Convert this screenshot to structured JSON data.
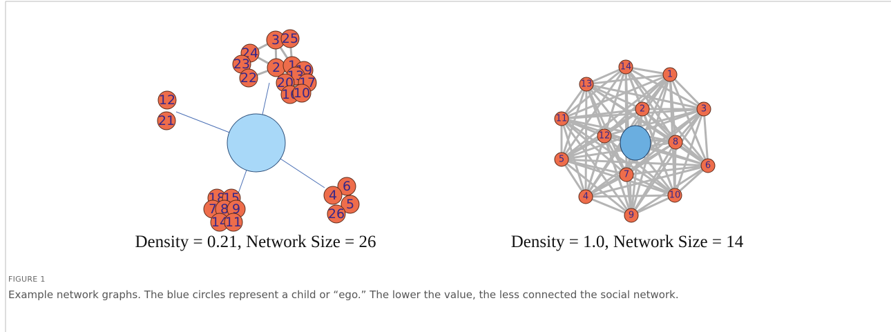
{
  "panels": [
    {
      "caption": "Density = 0.21, Network Size = 26",
      "nodes": [
        "3",
        "25",
        "24",
        "23",
        "22",
        "2",
        "1",
        "19",
        "13",
        "20",
        "17",
        "16",
        "10",
        "12",
        "21",
        "18",
        "15",
        "7",
        "8",
        "9",
        "14",
        "11",
        "6",
        "4",
        "5",
        "26"
      ]
    },
    {
      "caption": "Density = 1.0, Network Size = 14",
      "nodes": [
        "14",
        "1",
        "13",
        "3",
        "2",
        "11",
        "12",
        "8",
        "5",
        "6",
        "7",
        "4",
        "10",
        "9"
      ]
    }
  ],
  "figure": {
    "label": "FIGURE 1",
    "caption": "Example network graphs. The blue circles represent a child or “ego.” The lower the value, the less connected the social network."
  }
}
